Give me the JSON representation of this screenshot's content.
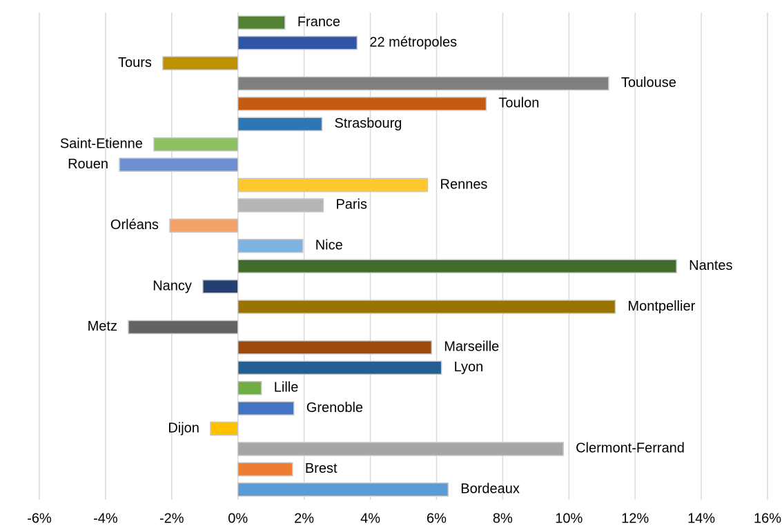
{
  "chart_data": {
    "type": "bar",
    "orientation": "horizontal",
    "categories": [
      "France",
      "22 métropoles",
      "Tours",
      "Toulouse",
      "Toulon",
      "Strasbourg",
      "Saint-Etienne",
      "Rouen",
      "Rennes",
      "Paris",
      "Orléans",
      "Nice",
      "Nantes",
      "Nancy",
      "Montpellier",
      "Metz",
      "Marseille",
      "Lyon",
      "Lille",
      "Grenoble",
      "Dijon",
      "Clermont-Ferrand",
      "Brest",
      "Bordeaux"
    ],
    "values": [
      1.42,
      3.6,
      -2.27,
      11.2,
      7.5,
      2.54,
      -2.54,
      -3.58,
      5.73,
      2.58,
      -2.06,
      1.96,
      13.25,
      -1.06,
      11.4,
      -3.31,
      5.85,
      6.15,
      0.71,
      1.69,
      -0.83,
      9.83,
      1.65,
      6.35
    ],
    "colors": [
      "#548235",
      "#2f55a4",
      "#bf9000",
      "#7f7f7f",
      "#c55a11",
      "#2e75b6",
      "#8cc063",
      "#6f8fd0",
      "#ffc82f",
      "#b5b5b5",
      "#f4a16a",
      "#7eb2e0",
      "#426b2b",
      "#243f72",
      "#987300",
      "#636363",
      "#9e480e",
      "#255e91",
      "#70ad47",
      "#4472c4",
      "#ffc000",
      "#a5a5a5",
      "#ed7d31",
      "#5b9bd5"
    ],
    "xlim": [
      -6,
      16
    ],
    "xticks": [
      {
        "value": -6,
        "label": "-6%"
      },
      {
        "value": -4,
        "label": "-4%"
      },
      {
        "value": -2,
        "label": "-2%"
      },
      {
        "value": 0,
        "label": "0%"
      },
      {
        "value": 2,
        "label": "2%"
      },
      {
        "value": 4,
        "label": "4%"
      },
      {
        "value": 6,
        "label": "6%"
      },
      {
        "value": 8,
        "label": "8%"
      },
      {
        "value": 10,
        "label": "10%"
      },
      {
        "value": 12,
        "label": "12%"
      },
      {
        "value": 14,
        "label": "14%"
      },
      {
        "value": 16,
        "label": "16%"
      }
    ],
    "grid": true
  }
}
